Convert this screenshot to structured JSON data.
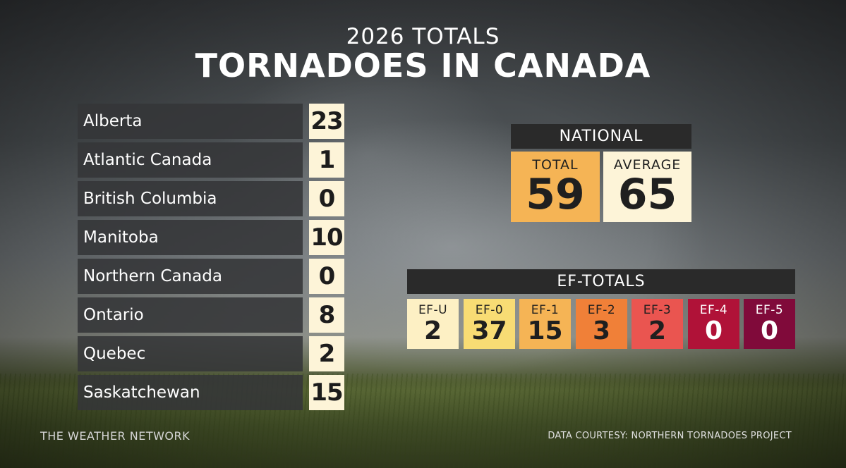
{
  "header": {
    "subtitle": "2026 TOTALS",
    "title": "TORNADOES IN CANADA"
  },
  "provinces": [
    {
      "name": "Alberta",
      "value": "23"
    },
    {
      "name": "Atlantic Canada",
      "value": "1"
    },
    {
      "name": "British Columbia",
      "value": "0"
    },
    {
      "name": "Manitoba",
      "value": "10"
    },
    {
      "name": "Northern Canada",
      "value": "0"
    },
    {
      "name": "Ontario",
      "value": "8"
    },
    {
      "name": "Quebec",
      "value": "2"
    },
    {
      "name": "Saskatchewan",
      "value": "15"
    }
  ],
  "national": {
    "heading": "NATIONAL",
    "total_label": "TOTAL",
    "total_value": "59",
    "average_label": "AVERAGE",
    "average_value": "65"
  },
  "ef_totals": {
    "heading": "EF-TOTALS",
    "items": [
      {
        "label": "EF-U",
        "value": "2",
        "bg": "#fdf0c4",
        "fg": "#1f1f1f"
      },
      {
        "label": "EF-0",
        "value": "37",
        "bg": "#f8dc74",
        "fg": "#1f1f1f"
      },
      {
        "label": "EF-1",
        "value": "15",
        "bg": "#f5b455",
        "fg": "#1f1f1f"
      },
      {
        "label": "EF-2",
        "value": "3",
        "bg": "#f08038",
        "fg": "#1f1f1f"
      },
      {
        "label": "EF-3",
        "value": "2",
        "bg": "#ea5550",
        "fg": "#1f1f1f"
      },
      {
        "label": "EF-4",
        "value": "0",
        "bg": "#b01238",
        "fg": "#ffffff"
      },
      {
        "label": "EF-5",
        "value": "0",
        "bg": "#800a3a",
        "fg": "#ffffff"
      }
    ]
  },
  "footer": {
    "left": "THE WEATHER NETWORK",
    "right": "DATA COURTESY: NORTHERN TORNADOES PROJECT"
  }
}
